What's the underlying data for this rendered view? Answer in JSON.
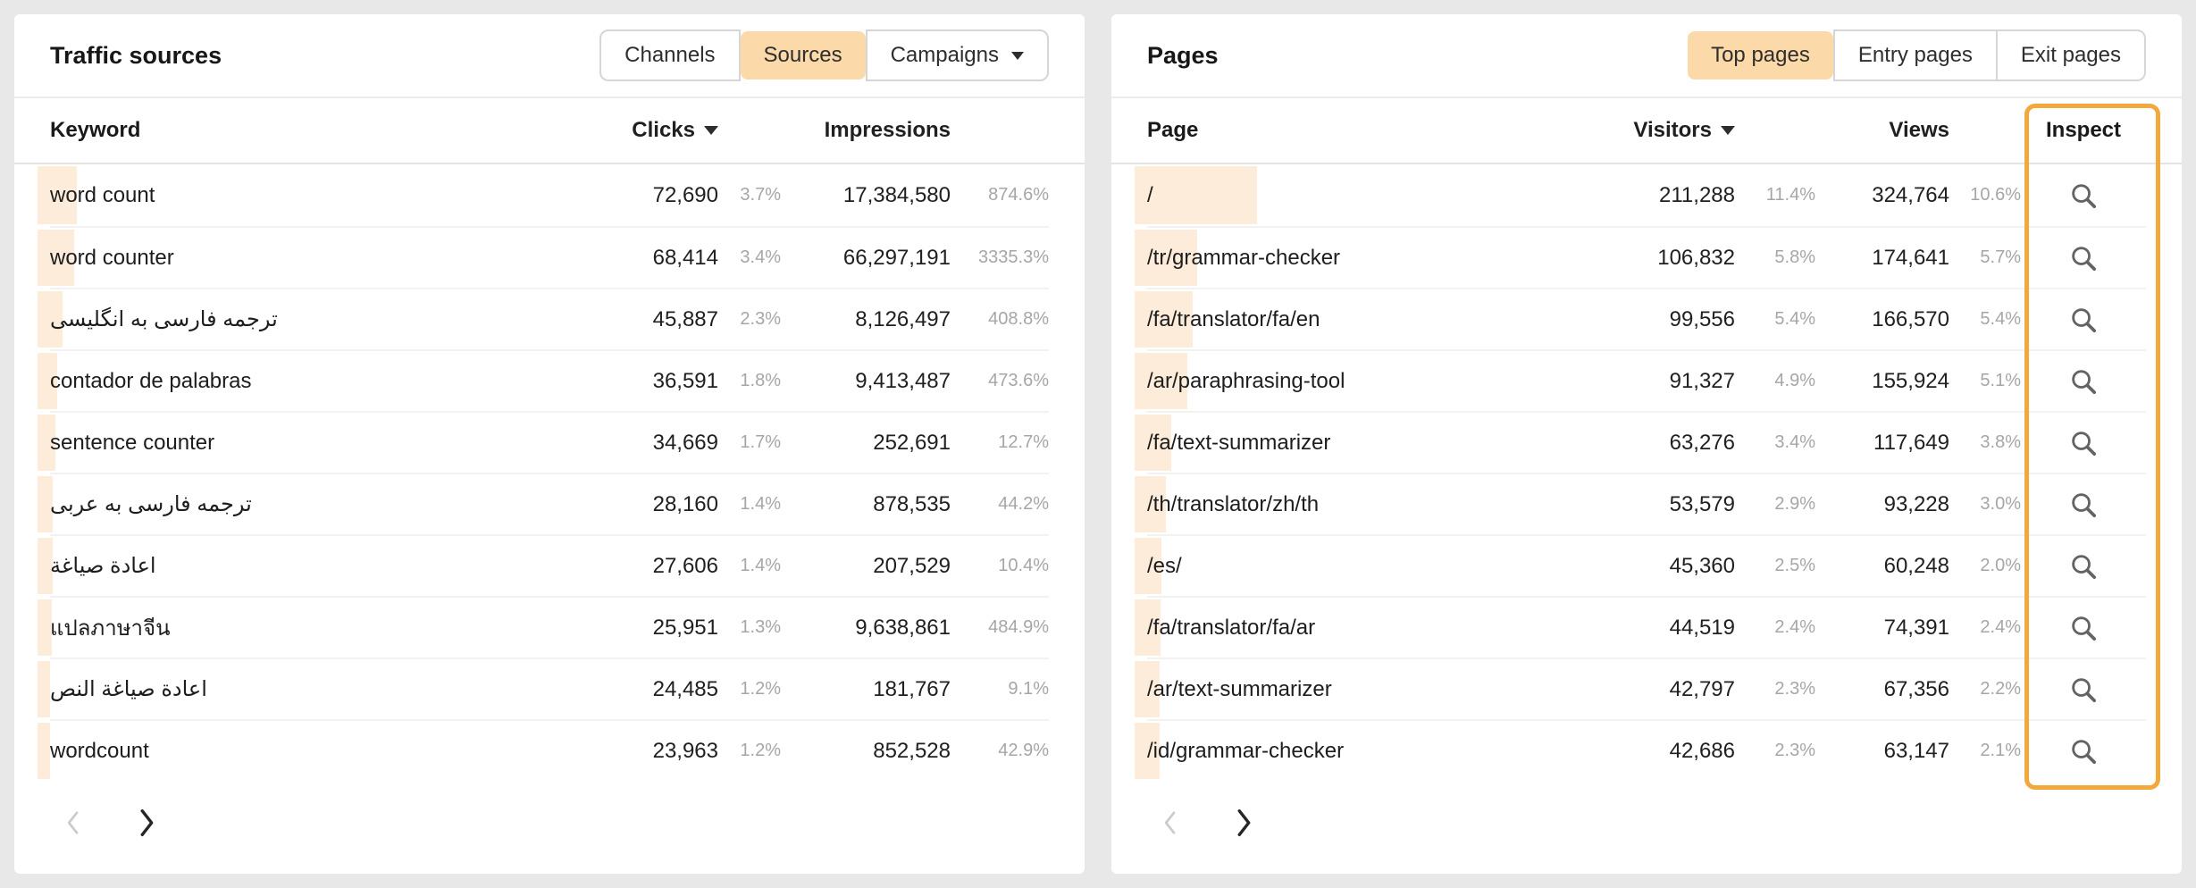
{
  "colors": {
    "accent_orange": "#f3a83b",
    "selected_tab_bg": "#fbd9a8",
    "row_bar_bg": "#fcecd9",
    "percent_text": "#a6a6a6"
  },
  "traffic_sources": {
    "title": "Traffic sources",
    "tabs": [
      {
        "label": "Channels",
        "selected": false
      },
      {
        "label": "Sources",
        "selected": true
      },
      {
        "label": "Campaigns",
        "selected": false,
        "has_dropdown": true
      }
    ],
    "columns": {
      "keyword": "Keyword",
      "clicks": "Clicks",
      "impressions": "Impressions"
    },
    "sorted_by": "Clicks",
    "rows": [
      {
        "keyword": "word count",
        "clicks": "72,690",
        "clicks_pct": "3.7%",
        "impressions": "17,384,580",
        "impressions_pct": "874.6%"
      },
      {
        "keyword": "word counter",
        "clicks": "68,414",
        "clicks_pct": "3.4%",
        "impressions": "66,297,191",
        "impressions_pct": "3335.3%"
      },
      {
        "keyword": "ترجمه فارسی به انگلیسی",
        "clicks": "45,887",
        "clicks_pct": "2.3%",
        "impressions": "8,126,497",
        "impressions_pct": "408.8%"
      },
      {
        "keyword": "contador de palabras",
        "clicks": "36,591",
        "clicks_pct": "1.8%",
        "impressions": "9,413,487",
        "impressions_pct": "473.6%"
      },
      {
        "keyword": "sentence counter",
        "clicks": "34,669",
        "clicks_pct": "1.7%",
        "impressions": "252,691",
        "impressions_pct": "12.7%"
      },
      {
        "keyword": "ترجمه فارسی به عربی",
        "clicks": "28,160",
        "clicks_pct": "1.4%",
        "impressions": "878,535",
        "impressions_pct": "44.2%"
      },
      {
        "keyword": "اعادة صياغة",
        "clicks": "27,606",
        "clicks_pct": "1.4%",
        "impressions": "207,529",
        "impressions_pct": "10.4%"
      },
      {
        "keyword": "แปลภาษาจีน",
        "clicks": "25,951",
        "clicks_pct": "1.3%",
        "impressions": "9,638,861",
        "impressions_pct": "484.9%"
      },
      {
        "keyword": "اعادة صياغة النص",
        "clicks": "24,485",
        "clicks_pct": "1.2%",
        "impressions": "181,767",
        "impressions_pct": "9.1%"
      },
      {
        "keyword": "wordcount",
        "clicks": "23,963",
        "clicks_pct": "1.2%",
        "impressions": "852,528",
        "impressions_pct": "42.9%"
      }
    ]
  },
  "pages": {
    "title": "Pages",
    "tabs": [
      {
        "label": "Top pages",
        "selected": true
      },
      {
        "label": "Entry pages",
        "selected": false
      },
      {
        "label": "Exit pages",
        "selected": false
      }
    ],
    "columns": {
      "page": "Page",
      "visitors": "Visitors",
      "views": "Views",
      "inspect": "Inspect"
    },
    "sorted_by": "Visitors",
    "rows": [
      {
        "page": "/",
        "visitors": "211,288",
        "visitors_pct": "11.4%",
        "views": "324,764",
        "views_pct": "10.6%"
      },
      {
        "page": "/tr/grammar-checker",
        "visitors": "106,832",
        "visitors_pct": "5.8%",
        "views": "174,641",
        "views_pct": "5.7%"
      },
      {
        "page": "/fa/translator/fa/en",
        "visitors": "99,556",
        "visitors_pct": "5.4%",
        "views": "166,570",
        "views_pct": "5.4%"
      },
      {
        "page": "/ar/paraphrasing-tool",
        "visitors": "91,327",
        "visitors_pct": "4.9%",
        "views": "155,924",
        "views_pct": "5.1%"
      },
      {
        "page": "/fa/text-summarizer",
        "visitors": "63,276",
        "visitors_pct": "3.4%",
        "views": "117,649",
        "views_pct": "3.8%"
      },
      {
        "page": "/th/translator/zh/th",
        "visitors": "53,579",
        "visitors_pct": "2.9%",
        "views": "93,228",
        "views_pct": "3.0%"
      },
      {
        "page": "/es/",
        "visitors": "45,360",
        "visitors_pct": "2.5%",
        "views": "60,248",
        "views_pct": "2.0%"
      },
      {
        "page": "/fa/translator/fa/ar",
        "visitors": "44,519",
        "visitors_pct": "2.4%",
        "views": "74,391",
        "views_pct": "2.4%"
      },
      {
        "page": "/ar/text-summarizer",
        "visitors": "42,797",
        "visitors_pct": "2.3%",
        "views": "67,356",
        "views_pct": "2.2%"
      },
      {
        "page": "/id/grammar-checker",
        "visitors": "42,686",
        "visitors_pct": "2.3%",
        "views": "63,147",
        "views_pct": "2.1%"
      }
    ]
  }
}
